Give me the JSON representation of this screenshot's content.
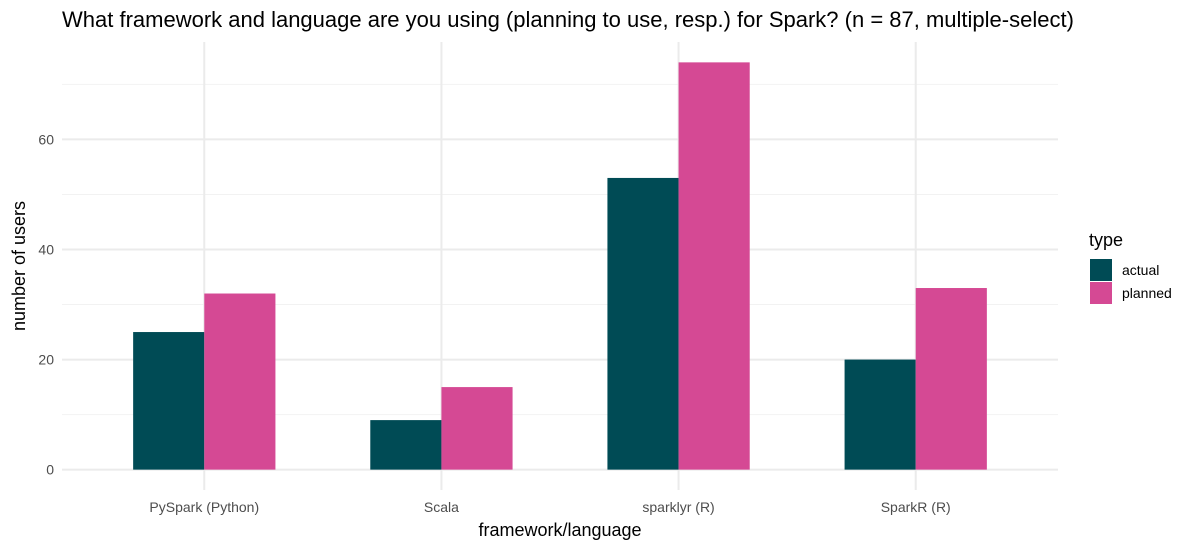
{
  "chart_data": {
    "type": "bar",
    "title": "What framework and language are you using (planning to use, resp.) for Spark? (n = 87, multiple-select)",
    "xlabel": "framework/language",
    "ylabel": "number of users",
    "categories": [
      "PySpark (Python)",
      "Scala",
      "sparklyr (R)",
      "SparkR (R)"
    ],
    "series": [
      {
        "name": "actual",
        "color": "#004B55",
        "values": [
          25,
          9,
          53,
          20
        ]
      },
      {
        "name": "planned",
        "color": "#D54994",
        "values": [
          32,
          15,
          74,
          33
        ]
      }
    ],
    "ylim": [
      -3.7,
      77.7
    ],
    "yticks": [
      0,
      20,
      40,
      60
    ],
    "grid": true,
    "legend": {
      "title": "type",
      "placement": "right"
    }
  }
}
